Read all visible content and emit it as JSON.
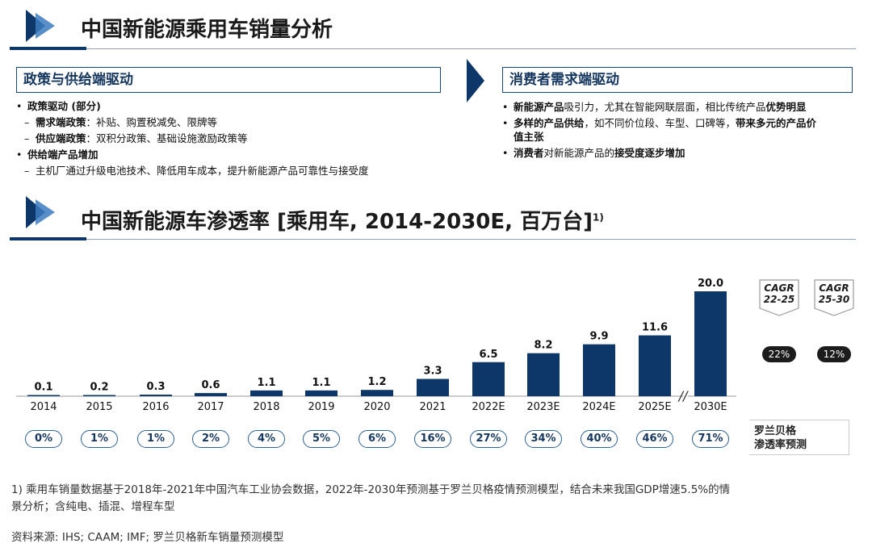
{
  "section1": {
    "title": "中国新能源乘用车销量分析"
  },
  "policy": {
    "header": "政策与供给端驱动",
    "items": [
      {
        "bullet": "•",
        "level": 1,
        "bold": "政策驱动 (部分)",
        "text": ""
      },
      {
        "bullet": "–",
        "level": 2,
        "bold": "需求端政策",
        "text": "：补贴、购置税减免、限牌等"
      },
      {
        "bullet": "–",
        "level": 2,
        "bold": "供应端政策",
        "text": "：双积分政策、基础设施激励政策等"
      },
      {
        "bullet": "•",
        "level": 1,
        "bold": "供给端产品增加",
        "text": ""
      },
      {
        "bullet": "–",
        "level": 2,
        "bold": "",
        "text": "主机厂通过升级电池技术、降低用车成本，提升新能源产品可靠性与接受度"
      }
    ]
  },
  "consumer": {
    "header": "消费者需求端驱动",
    "items": [
      {
        "bullet": "•",
        "line1": [
          {
            "t": "新能源产品",
            "b": true
          },
          {
            "t": "吸引力，尤其在智能网联层面，相比传统产品",
            "b": false
          },
          {
            "t": "优势明显",
            "b": true
          }
        ],
        "line2": []
      },
      {
        "bullet": "•",
        "line1": [
          {
            "t": "多样的产品供给",
            "b": true
          },
          {
            "t": "，如不同价位段、车型、口碑等，",
            "b": false
          },
          {
            "t": "带来多元的产品价",
            "b": true
          }
        ],
        "line2": [
          {
            "t": "值主张",
            "b": true
          }
        ]
      },
      {
        "bullet": "•",
        "line1": [
          {
            "t": "消费者",
            "b": true
          },
          {
            "t": "对新能源产品的",
            "b": false
          },
          {
            "t": "接受度逐步增加",
            "b": true
          }
        ],
        "line2": []
      }
    ]
  },
  "section2": {
    "title": "中国新能源车渗透率 [乘用车, 2014-2030E, 百万台]",
    "superscript": "1)"
  },
  "chart_data": {
    "type": "bar",
    "title": "中国新能源车渗透率 [乘用车, 2014-2030E, 百万台]",
    "categories": [
      "2014",
      "2015",
      "2016",
      "2017",
      "2018",
      "2019",
      "2020",
      "2021",
      "2022E",
      "2023E",
      "2024E",
      "2025E",
      "2030E"
    ],
    "values": [
      0.1,
      0.2,
      0.3,
      0.6,
      1.1,
      1.1,
      1.2,
      3.3,
      6.5,
      8.2,
      9.9,
      11.6,
      20.0
    ],
    "value_labels": [
      "0.1",
      "0.2",
      "0.3",
      "0.6",
      "1.1",
      "1.1",
      "1.2",
      "3.3",
      "6.5",
      "8.2",
      "9.9",
      "11.6",
      "20.0"
    ],
    "penetration_labels": [
      "0%",
      "1%",
      "1%",
      "2%",
      "4%",
      "5%",
      "6%",
      "16%",
      "27%",
      "34%",
      "40%",
      "46%",
      "71%"
    ],
    "axis_break_label": "//",
    "bar_color": "#0c3768",
    "ylim": [
      0,
      20
    ],
    "penetration_legend": [
      "罗兰贝格",
      "渗透率预测"
    ],
    "cagr": [
      {
        "label_line1": "CAGR",
        "label_line2": "22-25",
        "value": "22%"
      },
      {
        "label_line1": "CAGR",
        "label_line2": "25-30",
        "value": "12%"
      }
    ]
  },
  "footnote": {
    "line1": "1) 乘用车销量数据基于2018年-2021年中国汽车工业协会数据，2022年-2030年预测基于罗兰贝格疫情预测模型，结合未来我国GDP增速5.5%的情",
    "line2": "景分析；含纯电、插混、增程车型",
    "source": "资料来源: IHS; CAAM; IMF; 罗兰贝格新车销量预测模型"
  },
  "colors": {
    "accent": "#0c3768",
    "light_accent": "#4f8bc4"
  }
}
